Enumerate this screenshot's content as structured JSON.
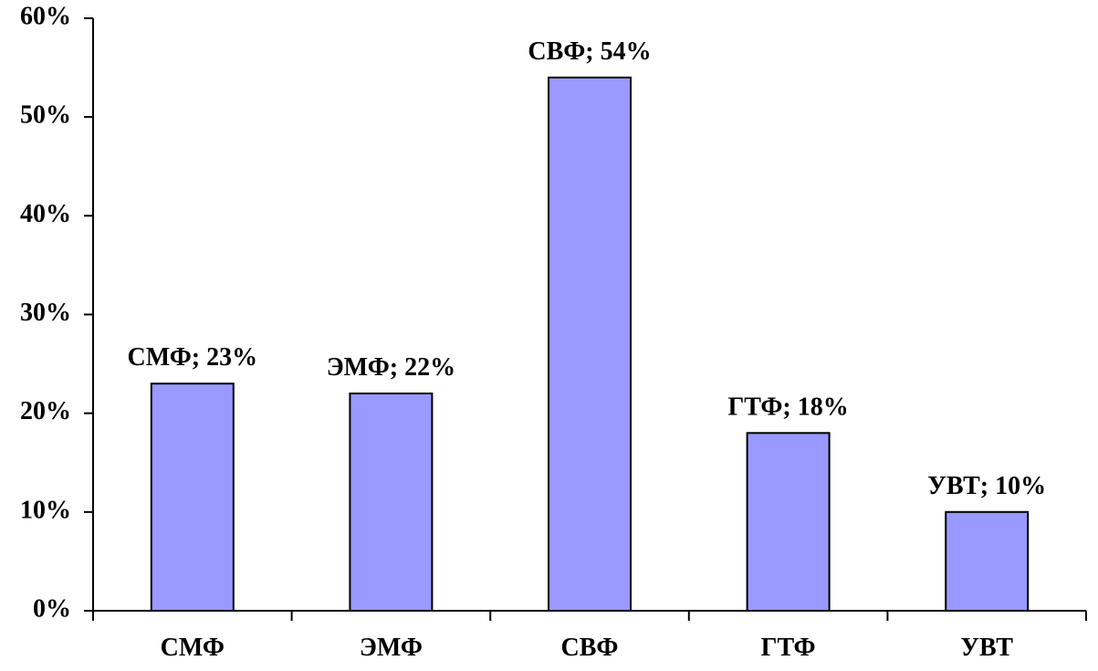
{
  "chart_data": {
    "type": "bar",
    "title": "",
    "xlabel": "",
    "ylabel": "",
    "categories": [
      "СМФ",
      "ЭМФ",
      "СВФ",
      "ГТФ",
      "УВТ"
    ],
    "values": [
      23,
      22,
      54,
      18,
      10
    ],
    "data_labels": [
      "СМФ; 23%",
      "ЭМФ; 22%",
      "СВФ; 54%",
      "ГТФ; 18%",
      "УВТ; 10%"
    ],
    "ylim": [
      0,
      60
    ],
    "yticks": [
      0,
      10,
      20,
      30,
      40,
      50,
      60
    ],
    "ytick_labels": [
      "0%",
      "10%",
      "20%",
      "30%",
      "40%",
      "50%",
      "60%"
    ],
    "grid": false,
    "legend": "none",
    "bar_color": "#9999ff",
    "bar_edge_color": "#000000"
  }
}
